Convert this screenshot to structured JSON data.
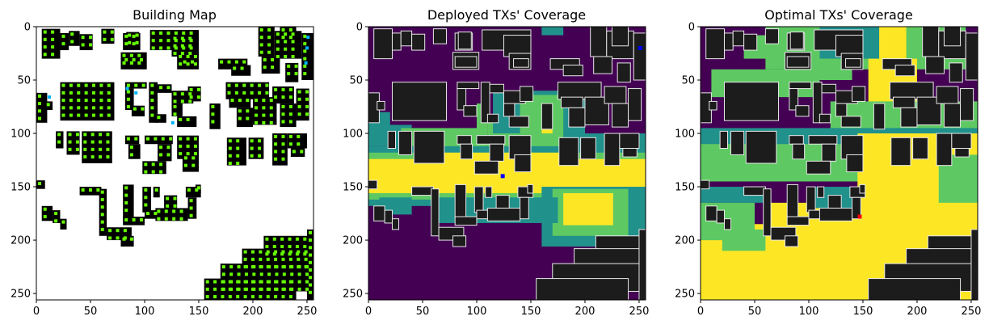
{
  "chart_data": [
    {
      "type": "heatmap",
      "title": "Building Map",
      "xlabel": "",
      "ylabel": "",
      "xlim": [
        0,
        256
      ],
      "ylim": [
        256,
        0
      ],
      "xticks": [
        0,
        50,
        100,
        150,
        200,
        250
      ],
      "yticks": [
        0,
        50,
        100,
        150,
        200,
        250
      ],
      "grid": false,
      "legend": "none",
      "colors": {
        "background": "#ffffff",
        "building": "#000000",
        "receiver_points": "#66ff00",
        "transmitter_markers": "#00b4ff"
      }
    },
    {
      "type": "heatmap",
      "title": "Deployed TXs' Coverage",
      "xlabel": "",
      "ylabel": "",
      "xlim": [
        0,
        256
      ],
      "ylim": [
        256,
        0
      ],
      "xticks": [
        0,
        50,
        100,
        150,
        200,
        250
      ],
      "yticks": [
        0,
        50,
        100,
        150,
        200,
        250
      ],
      "grid": false,
      "legend": "none",
      "colors": {
        "low": "#440154",
        "mid_low": "#21918c",
        "mid_high": "#5ec962",
        "high": "#fde725",
        "building": "#1c1c1c",
        "building_outline": "#e8e8e8",
        "tx_marker": "#0000ff"
      }
    },
    {
      "type": "heatmap",
      "title": "Optimal TXs' Coverage",
      "xlabel": "",
      "ylabel": "",
      "xlim": [
        0,
        256
      ],
      "ylim": [
        256,
        0
      ],
      "xticks": [
        0,
        50,
        100,
        150,
        200,
        250
      ],
      "yticks": [
        0,
        50,
        100,
        150,
        200,
        250
      ],
      "grid": false,
      "legend": "none",
      "colors": {
        "low": "#440154",
        "mid_low": "#21918c",
        "mid_high": "#5ec962",
        "high": "#fde725",
        "building": "#1c1c1c",
        "building_outline": "#e8e8e8",
        "tx_marker": "#ff0000"
      }
    }
  ]
}
